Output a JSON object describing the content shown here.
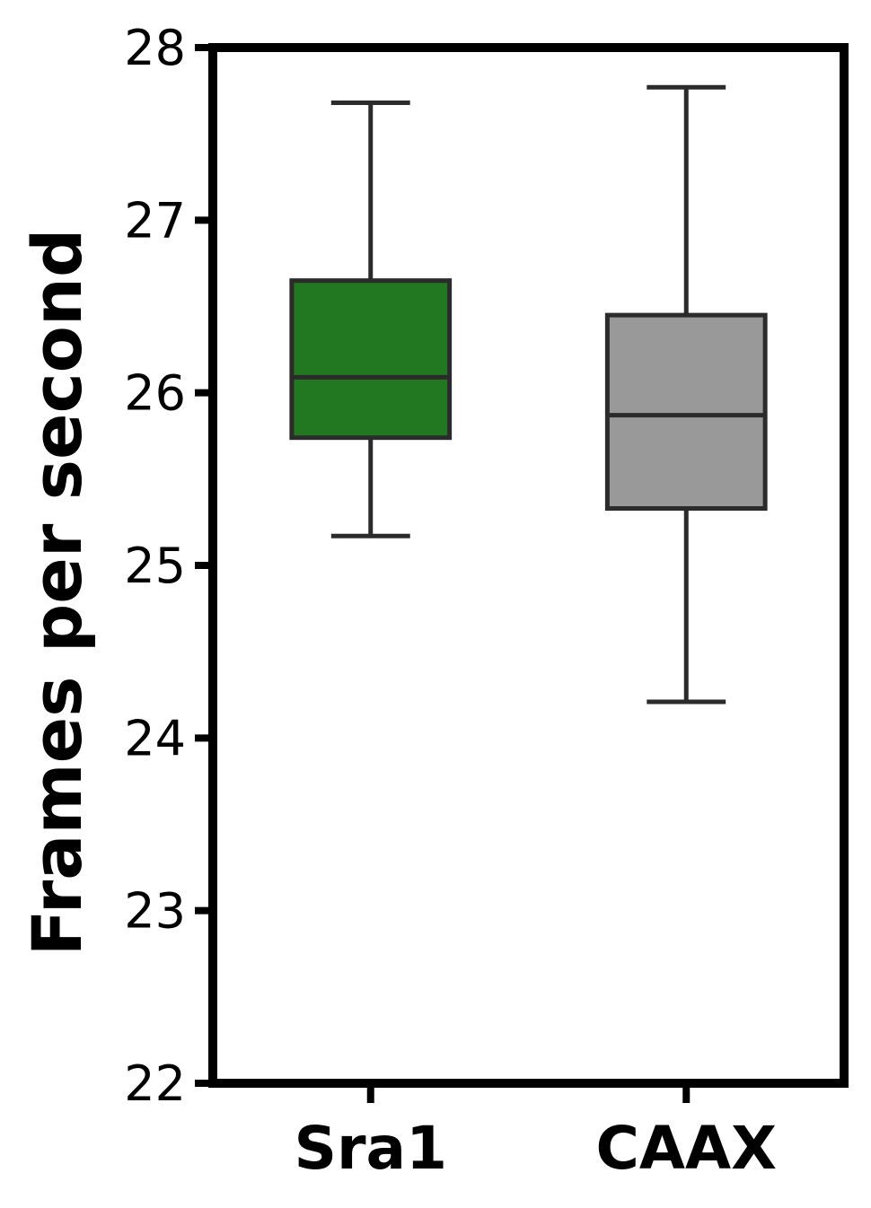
{
  "chart_data": {
    "type": "box",
    "title": "",
    "xlabel": "",
    "ylabel": "Frames per second",
    "ylim": [
      22,
      28
    ],
    "yticks": [
      "22",
      "23",
      "24",
      "25",
      "26",
      "27",
      "28"
    ],
    "categories": [
      "Sra1",
      "CAAX"
    ],
    "boxes": [
      {
        "category": "Sra1",
        "whisker_low": 25.17,
        "q1": 25.74,
        "median": 26.09,
        "q3": 26.65,
        "whisker_high": 27.68,
        "color": "#217821"
      },
      {
        "category": "CAAX",
        "whisker_low": 24.21,
        "q1": 25.33,
        "median": 25.87,
        "q3": 26.45,
        "whisker_high": 27.77,
        "color": "#999999"
      }
    ],
    "grid": false,
    "legend": "none"
  }
}
